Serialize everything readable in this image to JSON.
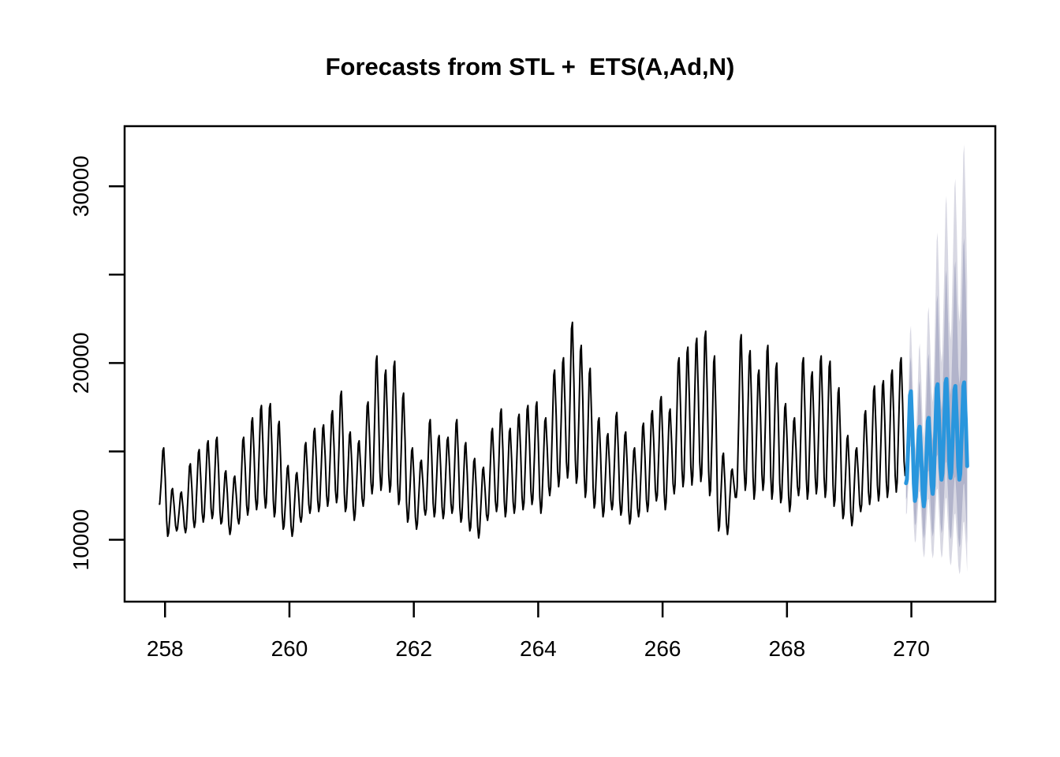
{
  "chart_data": {
    "type": "line",
    "title": "Forecasts from STL +  ETS(A,Ad,N)",
    "xlabel": "",
    "ylabel": "",
    "xlim": [
      257.35,
      271.35
    ],
    "ylim": [
      6500,
      33400
    ],
    "x_ticks": [
      258,
      260,
      262,
      264,
      266,
      268,
      270
    ],
    "x_tick_labels": [
      "258",
      "260",
      "262",
      "264",
      "266",
      "268",
      "270"
    ],
    "y_ticks": [
      10000,
      15000,
      20000,
      25000,
      30000
    ],
    "y_tick_labels": [
      "10000",
      "",
      "20000",
      "",
      "30000"
    ],
    "grid": "off",
    "legend": "none",
    "background_color": "#ffffff",
    "axis_color": "#000000",
    "seasonal_structure": "7 daily cycles per x unit (weekly index); values are daily peak/trough levels read from the plot",
    "day_shape": {
      "fractions": [
        0,
        0.1,
        0.28,
        0.45,
        0.55,
        0.72,
        0.88,
        1
      ],
      "heights": [
        0,
        0.06,
        0.5,
        0.96,
        1,
        0.62,
        0.14,
        0
      ]
    },
    "series": [
      {
        "name": "observed",
        "color": "#000000",
        "line_width": 2,
        "x_start": 257.9,
        "cycle_width": 0.142857,
        "daily_peaks": [
          15200,
          12900,
          12700,
          14300,
          15100,
          15600,
          15800,
          13900,
          13600,
          15800,
          16900,
          17600,
          17700,
          16700,
          14200,
          13800,
          15500,
          16300,
          16500,
          17300,
          18400,
          16100,
          15600,
          17800,
          20400,
          19600,
          20100,
          18300,
          15200,
          14500,
          16800,
          15900,
          15800,
          16800,
          15500,
          14600,
          14100,
          16300,
          17400,
          16300,
          17100,
          17600,
          17800,
          16900,
          19600,
          20300,
          22300,
          21000,
          19700,
          16900,
          16000,
          17200,
          16100,
          15200,
          16600,
          17300,
          18100,
          17400,
          20300,
          20900,
          21400,
          21800,
          20400,
          14900,
          14000,
          21600,
          20700,
          19600,
          21000,
          20000,
          17700,
          16900,
          20300,
          19500,
          20400,
          20100,
          18600,
          15900,
          15200,
          17300,
          18700,
          19000,
          19600,
          20300
        ],
        "daily_troughs": [
          12000,
          10200,
          10500,
          10400,
          10700,
          11000,
          11200,
          10900,
          10300,
          10900,
          11400,
          11700,
          11800,
          11300,
          10600,
          10200,
          11000,
          11500,
          11600,
          11900,
          12100,
          11600,
          11100,
          11900,
          12600,
          12800,
          12700,
          12000,
          11000,
          10600,
          11400,
          11300,
          11200,
          11500,
          11000,
          10500,
          10100,
          11100,
          11600,
          11300,
          11500,
          11700,
          12000,
          11500,
          12500,
          13000,
          13500,
          13200,
          12400,
          11800,
          11300,
          11700,
          11400,
          10900,
          11300,
          11600,
          12200,
          11700,
          12600,
          13000,
          13100,
          13300,
          12500,
          10500,
          10300,
          12400,
          12800,
          12300,
          12800,
          12300,
          12100,
          11600,
          12500,
          12300,
          12600,
          12400,
          11900,
          11200,
          10800,
          11600,
          12000,
          12200,
          12400,
          12700
        ],
        "end_trough": 13600
      },
      {
        "name": "forecast-mean",
        "color": "#2996DD",
        "line_width": 5,
        "x_start": 269.914,
        "cycle_width": 0.142857,
        "daily_peaks": [
          18400,
          16400,
          16900,
          18800,
          19100,
          18700,
          18900
        ],
        "daily_troughs": [
          13200,
          12200,
          11900,
          12600,
          13400,
          13500,
          13400
        ],
        "end_trough": 13400,
        "partial_last_fraction": 0.88
      }
    ],
    "intervals": [
      {
        "level": 95,
        "color": "#D8D8E3",
        "bound_type": "multiplicative (log-scale symmetric)",
        "factor_start": 1.155,
        "factor_end": 1.74,
        "hi_end_approx": 32400,
        "lo_end_approx": 7700
      },
      {
        "level": 80,
        "color": "#B2B4CB",
        "bound_type": "multiplicative (log-scale symmetric)",
        "factor_start": 1.075,
        "factor_end": 1.45,
        "hi_end_approx": 27000,
        "lo_end_approx": 9300
      }
    ]
  }
}
